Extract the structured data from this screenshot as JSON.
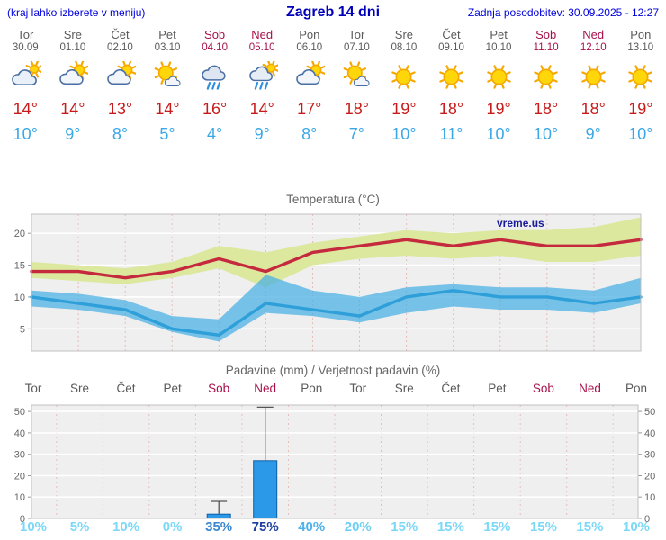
{
  "header": {
    "left_note": "(kraj lahko izberete v meniju)",
    "title": "Zagreb 14 dni",
    "updated": "Zadnja posodobitev: 30.09.2025 - 12:27"
  },
  "colors": {
    "header_blue": "#0000dd",
    "title_blue": "#0000bb",
    "day_gray": "#5a5a5a",
    "weekend": "#a8104a",
    "tmax": "#c81a1a",
    "tmin": "#3aa7e6",
    "chart_title": "#666666"
  },
  "forecast": {
    "days": [
      {
        "name": "Tor",
        "date": "30.09",
        "weekend": false,
        "icon": "mostly-cloudy",
        "tmax": "14°",
        "tmin": "10°"
      },
      {
        "name": "Sre",
        "date": "01.10",
        "weekend": false,
        "icon": "partly-cloudy",
        "tmax": "14°",
        "tmin": "9°"
      },
      {
        "name": "Čet",
        "date": "02.10",
        "weekend": false,
        "icon": "partly-cloudy",
        "tmax": "13°",
        "tmin": "8°"
      },
      {
        "name": "Pet",
        "date": "03.10",
        "weekend": false,
        "icon": "mostly-sunny",
        "tmax": "14°",
        "tmin": "5°"
      },
      {
        "name": "Sob",
        "date": "04.10",
        "weekend": true,
        "icon": "rain",
        "tmax": "16°",
        "tmin": "4°"
      },
      {
        "name": "Ned",
        "date": "05.10",
        "weekend": true,
        "icon": "rain-sun",
        "tmax": "14°",
        "tmin": "9°"
      },
      {
        "name": "Pon",
        "date": "06.10",
        "weekend": false,
        "icon": "partly-cloudy",
        "tmax": "17°",
        "tmin": "8°"
      },
      {
        "name": "Tor",
        "date": "07.10",
        "weekend": false,
        "icon": "mostly-sunny",
        "tmax": "18°",
        "tmin": "7°"
      },
      {
        "name": "Sre",
        "date": "08.10",
        "weekend": false,
        "icon": "sun",
        "tmax": "19°",
        "tmin": "10°"
      },
      {
        "name": "Čet",
        "date": "09.10",
        "weekend": false,
        "icon": "sun",
        "tmax": "18°",
        "tmin": "11°"
      },
      {
        "name": "Pet",
        "date": "10.10",
        "weekend": false,
        "icon": "sun",
        "tmax": "19°",
        "tmin": "10°"
      },
      {
        "name": "Sob",
        "date": "11.10",
        "weekend": true,
        "icon": "sun",
        "tmax": "18°",
        "tmin": "10°"
      },
      {
        "name": "Ned",
        "date": "12.10",
        "weekend": true,
        "icon": "sun",
        "tmax": "18°",
        "tmin": "9°"
      },
      {
        "name": "Pon",
        "date": "13.10",
        "weekend": false,
        "icon": "sun",
        "tmax": "19°",
        "tmin": "10°"
      }
    ]
  },
  "chart_data": [
    {
      "type": "area",
      "title": "Temperatura (°C)",
      "watermark": "vreme.us",
      "x_labels": [
        "Tor",
        "Sre",
        "Čet",
        "Pet",
        "Sob",
        "Ned",
        "Pon",
        "Tor",
        "Sre",
        "Čet",
        "Pet",
        "Sob",
        "Ned",
        "Pon"
      ],
      "ylim": [
        1.5,
        23
      ],
      "yticks": [
        5,
        10,
        15,
        20
      ],
      "series": [
        {
          "name": "max-temp",
          "color": "#c5293d",
          "values": [
            14,
            14,
            13,
            14,
            16,
            14,
            17,
            18,
            19,
            18,
            19,
            18,
            18,
            19
          ]
        },
        {
          "name": "min-temp",
          "color": "#2e9fd8",
          "values": [
            10,
            9,
            8,
            5,
            4,
            9,
            8,
            7,
            10,
            11,
            10,
            10,
            9,
            10
          ]
        }
      ],
      "bands": [
        {
          "name": "max-range",
          "color": "#dbe89e",
          "opacity": 1,
          "upper": [
            15.5,
            15,
            14.5,
            15.5,
            18,
            17,
            18.5,
            19.5,
            20.5,
            20,
            20.5,
            20.5,
            21,
            22.5
          ],
          "lower": [
            13,
            12.5,
            12,
            13,
            14.5,
            11.5,
            15,
            16,
            16.5,
            16,
            16.5,
            15.5,
            15.5,
            16.5
          ]
        },
        {
          "name": "min-range",
          "color": "#46afe3",
          "opacity": 0.72,
          "upper": [
            11,
            10.5,
            9.5,
            7,
            6.5,
            13.5,
            11,
            10,
            11.5,
            12,
            11.5,
            11.5,
            11,
            13
          ],
          "lower": [
            8.5,
            8,
            7,
            4.5,
            3,
            7.5,
            7,
            6,
            7.5,
            8.5,
            8,
            8,
            7.5,
            9
          ]
        }
      ]
    },
    {
      "type": "bar",
      "title": "Padavine (mm) / Verjetnost padavin (%)",
      "categories": [
        "Tor",
        "Sre",
        "Čet",
        "Pet",
        "Sob",
        "Ned",
        "Pon",
        "Tor",
        "Sre",
        "Čet",
        "Pet",
        "Sob",
        "Ned",
        "Pon"
      ],
      "weekend": [
        false,
        false,
        false,
        false,
        true,
        true,
        false,
        false,
        false,
        false,
        false,
        true,
        true,
        false
      ],
      "values_mm": [
        0,
        0,
        0,
        0,
        2,
        27,
        0,
        0,
        0,
        0,
        0,
        0,
        0,
        0
      ],
      "whisker_max": [
        0,
        0,
        0,
        0,
        8,
        52,
        0,
        0,
        0,
        0,
        0,
        0,
        0,
        0
      ],
      "probabilities": [
        "10%",
        "5%",
        "10%",
        "0%",
        "35%",
        "75%",
        "40%",
        "20%",
        "15%",
        "15%",
        "15%",
        "15%",
        "15%",
        "10%"
      ],
      "probability_colors": [
        "#7cd8f7",
        "#7cd8f7",
        "#7cd8f7",
        "#7cd8f7",
        "#3a87cf",
        "#1c3fa0",
        "#4fb2ea",
        "#6ed0f5",
        "#7cd8f7",
        "#7cd8f7",
        "#7cd8f7",
        "#7cd8f7",
        "#7cd8f7",
        "#7cd8f7"
      ],
      "ylim": [
        0,
        53
      ],
      "yticks": [
        0,
        10,
        20,
        30,
        40,
        50
      ],
      "bar_color": "#2b99e8",
      "bar_border": "#0f5fa8"
    }
  ]
}
